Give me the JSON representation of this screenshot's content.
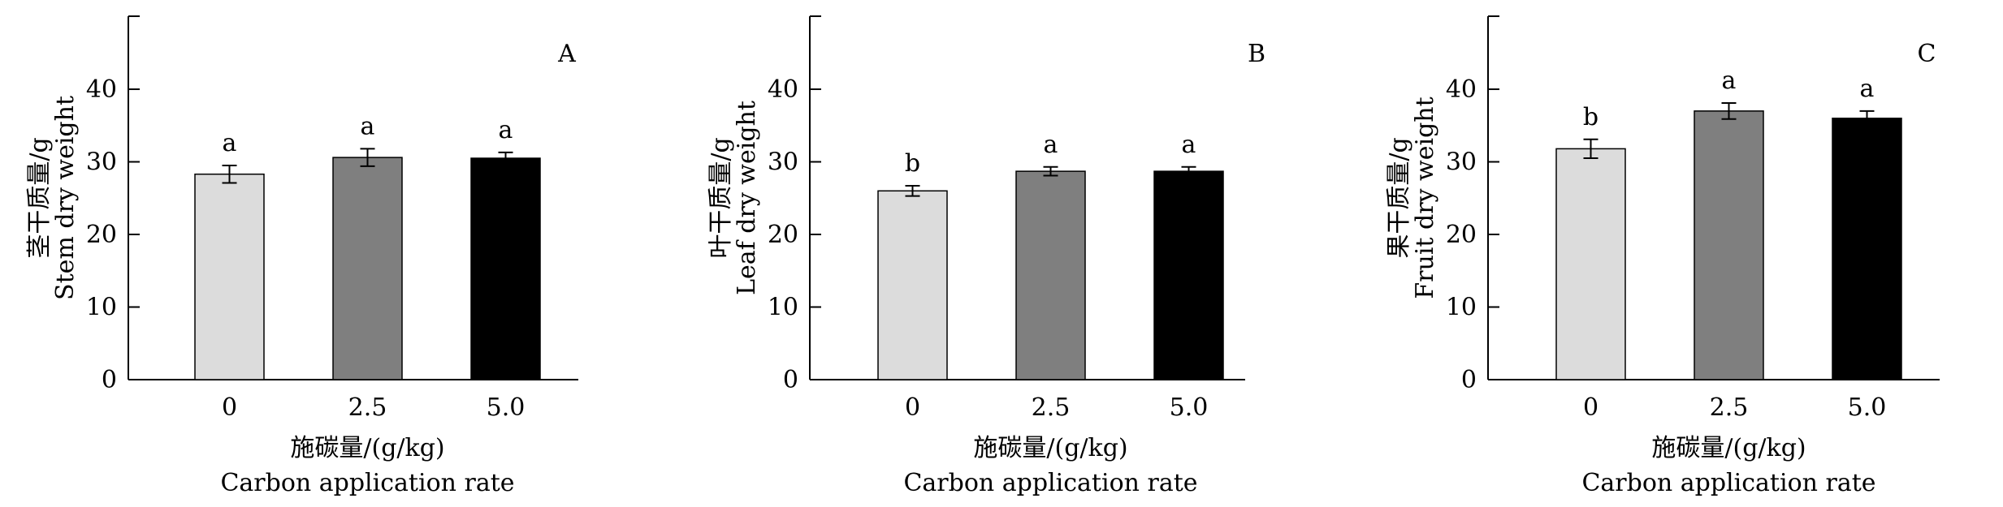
{
  "chart_data": [
    {
      "type": "bar",
      "panel_label": "A",
      "categories": [
        "0",
        "2.5",
        "5.0"
      ],
      "values": [
        28.3,
        30.6,
        30.5
      ],
      "errors": [
        1.2,
        1.2,
        0.8
      ],
      "significance": [
        "a",
        "a",
        "a"
      ],
      "bar_colors": [
        "#dcdcdc",
        "#7f7f7f",
        "#000000"
      ],
      "ylabel_cn": "茎干质量/g",
      "ylabel_en": "Stem dry weight",
      "xlabel_cn": "施碳量/(g/kg)",
      "xlabel_en": "Carbon application rate",
      "yticks": [
        0,
        10,
        20,
        30,
        40
      ],
      "ylim": [
        0,
        50
      ]
    },
    {
      "type": "bar",
      "panel_label": "B",
      "categories": [
        "0",
        "2.5",
        "5.0"
      ],
      "values": [
        26.0,
        28.7,
        28.7
      ],
      "errors": [
        0.7,
        0.6,
        0.6
      ],
      "significance": [
        "b",
        "a",
        "a"
      ],
      "bar_colors": [
        "#dcdcdc",
        "#7f7f7f",
        "#000000"
      ],
      "ylabel_cn": "叶干质量/g",
      "ylabel_en": "Leaf dry weight",
      "xlabel_cn": "施碳量/(g/kg)",
      "xlabel_en": "Carbon application rate",
      "yticks": [
        0,
        10,
        20,
        30,
        40
      ],
      "ylim": [
        0,
        50
      ]
    },
    {
      "type": "bar",
      "panel_label": "C",
      "categories": [
        "0",
        "2.5",
        "5.0"
      ],
      "values": [
        31.8,
        37.0,
        36.0
      ],
      "errors": [
        1.3,
        1.1,
        1.0
      ],
      "significance": [
        "b",
        "a",
        "a"
      ],
      "bar_colors": [
        "#dcdcdc",
        "#7f7f7f",
        "#000000"
      ],
      "ylabel_cn": "果干质量/g",
      "ylabel_en": "Fruit dry weight",
      "xlabel_cn": "施碳量/(g/kg)",
      "xlabel_en": "Carbon application rate",
      "yticks": [
        0,
        10,
        20,
        30,
        40
      ],
      "ylim": [
        0,
        50
      ]
    }
  ]
}
